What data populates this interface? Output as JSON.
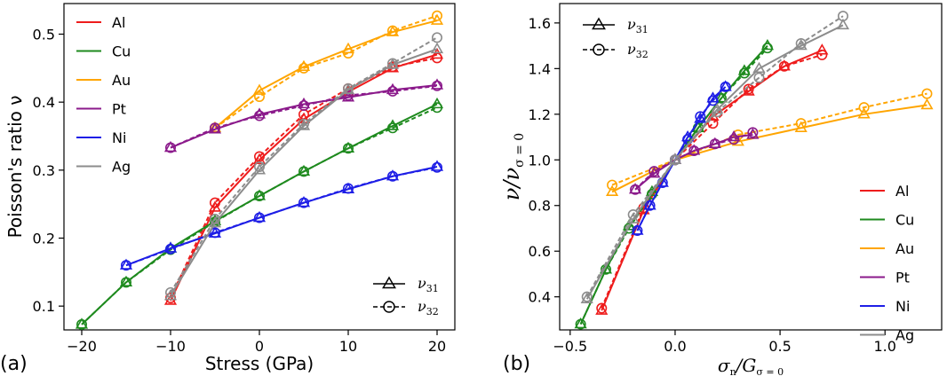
{
  "colors": {
    "Al": "#ee1c1c",
    "Cu": "#1e8a1e",
    "Au": "#ffa500",
    "Pt": "#8b1a8b",
    "Ni": "#1e1ee6",
    "Ag": "#8c8c8c"
  },
  "chart_data": [
    {
      "type": "line",
      "panel_label": "(a)",
      "xlabel": "Stress (GPa)",
      "ylabel": "Poisson's ratio ν",
      "xlim": [
        -22,
        22
      ],
      "ylim": [
        0.065,
        0.545
      ],
      "xticks": [
        -20,
        -10,
        0,
        10,
        20
      ],
      "xtick_labels": [
        "−20",
        "−10",
        "0",
        "10",
        "20"
      ],
      "yticks": [
        0.1,
        0.2,
        0.3,
        0.4,
        0.5
      ],
      "ytick_labels": [
        "0.1",
        "0.2",
        "0.3",
        "0.4",
        "0.5"
      ],
      "material_legend": [
        "Al",
        "Cu",
        "Au",
        "Pt",
        "Ni",
        "Ag"
      ],
      "marker_legend": {
        "nu31": {
          "base": "ν",
          "sub": "31"
        },
        "nu32": {
          "base": "ν",
          "sub": "32"
        }
      },
      "series": [
        {
          "name": "Al",
          "x": [
            -10,
            -5,
            0,
            5,
            10,
            15,
            20
          ],
          "nu31": [
            0.108,
            0.245,
            0.315,
            0.375,
            0.415,
            0.45,
            0.47
          ],
          "nu32": [
            0.112,
            0.252,
            0.32,
            0.382,
            0.42,
            0.452,
            0.465
          ]
        },
        {
          "name": "Cu",
          "x": [
            -20,
            -15,
            -10,
            -5,
            0,
            5,
            10,
            15,
            20
          ],
          "nu31": [
            0.073,
            0.135,
            0.185,
            0.225,
            0.262,
            0.298,
            0.332,
            0.365,
            0.397
          ],
          "nu32": [
            0.073,
            0.135,
            0.183,
            0.224,
            0.262,
            0.298,
            0.332,
            0.362,
            0.392
          ]
        },
        {
          "name": "Au",
          "x": [
            -5,
            0,
            5,
            10,
            15,
            20
          ],
          "nu31": [
            0.362,
            0.417,
            0.452,
            0.478,
            0.503,
            0.52
          ],
          "nu32": [
            0.362,
            0.408,
            0.45,
            0.472,
            0.505,
            0.527
          ]
        },
        {
          "name": "Pt",
          "x": [
            -10,
            -5,
            0,
            5,
            10,
            15,
            20
          ],
          "nu31": [
            0.333,
            0.36,
            0.382,
            0.397,
            0.407,
            0.418,
            0.425
          ],
          "nu32": [
            0.333,
            0.362,
            0.38,
            0.395,
            0.41,
            0.416,
            0.424
          ]
        },
        {
          "name": "Ni",
          "x": [
            -15,
            -10,
            -5,
            0,
            5,
            10,
            15,
            20
          ],
          "nu31": [
            0.16,
            0.185,
            0.207,
            0.23,
            0.252,
            0.272,
            0.291,
            0.305
          ],
          "nu32": [
            0.16,
            0.184,
            0.208,
            0.23,
            0.252,
            0.273,
            0.291,
            0.304
          ]
        },
        {
          "name": "Ag",
          "x": [
            -10,
            -5,
            0,
            5,
            10,
            15,
            20
          ],
          "nu31": [
            0.115,
            0.222,
            0.3,
            0.365,
            0.418,
            0.455,
            0.478
          ],
          "nu32": [
            0.12,
            0.228,
            0.305,
            0.368,
            0.42,
            0.457,
            0.495
          ]
        }
      ]
    },
    {
      "type": "line",
      "panel_label": "(b)",
      "xlabel": {
        "base": "σ",
        "sub1": "n",
        "mid": "/G",
        "sub2": "σ = 0"
      },
      "ylabel": {
        "base": "ν/ν",
        "sub": "σ = 0"
      },
      "xlim": [
        -0.55,
        1.27
      ],
      "ylim": [
        0.255,
        1.685
      ],
      "xticks": [
        -0.5,
        0.0,
        0.5,
        1.0
      ],
      "xtick_labels": [
        "−0.5",
        "0.0",
        "0.5",
        "1.0"
      ],
      "yticks": [
        0.4,
        0.6,
        0.8,
        1.0,
        1.2,
        1.4,
        1.6
      ],
      "ytick_labels": [
        "0.4",
        "0.6",
        "0.8",
        "1.0",
        "1.2",
        "1.4",
        "1.6"
      ],
      "material_legend": [
        "Al",
        "Cu",
        "Au",
        "Pt",
        "Ni",
        "Ag"
      ],
      "marker_legend": {
        "nu31": {
          "base": "ν",
          "sub": "31"
        },
        "nu32": {
          "base": "ν",
          "sub": "32"
        }
      },
      "series": [
        {
          "name": "Al",
          "nu31": {
            "x": [
              -0.35,
              -0.15,
              0.0,
              0.18,
              0.35,
              0.52,
              0.7
            ],
            "y": [
              0.34,
              0.78,
              1.0,
              1.19,
              1.3,
              1.41,
              1.48
            ]
          },
          "nu32": {
            "x": [
              -0.35,
              -0.15,
              0.0,
              0.18,
              0.35,
              0.52,
              0.7
            ],
            "y": [
              0.35,
              0.79,
              1.0,
              1.16,
              1.31,
              1.41,
              1.46
            ]
          }
        },
        {
          "name": "Cu",
          "nu31": {
            "x": [
              -0.45,
              -0.33,
              -0.22,
              -0.11,
              0.0,
              0.11,
              0.22,
              0.33,
              0.44
            ],
            "y": [
              0.28,
              0.52,
              0.71,
              0.86,
              1.0,
              1.14,
              1.27,
              1.39,
              1.5
            ]
          },
          "nu32": {
            "x": [
              -0.45,
              -0.33,
              -0.22,
              -0.11,
              0.0,
              0.11,
              0.22,
              0.33,
              0.44
            ],
            "y": [
              0.28,
              0.52,
              0.7,
              0.85,
              1.0,
              1.14,
              1.27,
              1.38,
              1.49
            ]
          }
        },
        {
          "name": "Au",
          "nu31": {
            "x": [
              -0.3,
              0.0,
              0.3,
              0.6,
              0.9,
              1.2
            ],
            "y": [
              0.86,
              1.0,
              1.08,
              1.14,
              1.2,
              1.24
            ]
          },
          "nu32": {
            "x": [
              -0.3,
              0.0,
              0.3,
              0.6,
              0.9,
              1.2
            ],
            "y": [
              0.89,
              1.0,
              1.11,
              1.16,
              1.23,
              1.29
            ]
          }
        },
        {
          "name": "Pt",
          "nu31": {
            "x": [
              -0.19,
              -0.1,
              0.0,
              0.09,
              0.19,
              0.28,
              0.37
            ],
            "y": [
              0.87,
              0.94,
              1.0,
              1.04,
              1.07,
              1.1,
              1.11
            ]
          },
          "nu32": {
            "x": [
              -0.19,
              -0.1,
              0.0,
              0.09,
              0.19,
              0.28,
              0.37
            ],
            "y": [
              0.87,
              0.95,
              1.0,
              1.04,
              1.07,
              1.09,
              1.12
            ]
          }
        },
        {
          "name": "Ni",
          "nu31": {
            "x": [
              -0.18,
              -0.12,
              -0.06,
              0.0,
              0.06,
              0.12,
              0.18,
              0.24
            ],
            "y": [
              0.69,
              0.8,
              0.9,
              1.0,
              1.1,
              1.18,
              1.27,
              1.32
            ]
          },
          "nu32": {
            "x": [
              -0.18,
              -0.12,
              -0.06,
              0.0,
              0.06,
              0.12,
              0.18,
              0.24
            ],
            "y": [
              0.69,
              0.8,
              0.9,
              1.0,
              1.09,
              1.19,
              1.26,
              1.32
            ]
          }
        },
        {
          "name": "Ag",
          "nu31": {
            "x": [
              -0.42,
              -0.2,
              0.0,
              0.2,
              0.4,
              0.6,
              0.8
            ],
            "y": [
              0.39,
              0.74,
              1.0,
              1.22,
              1.4,
              1.5,
              1.59
            ]
          },
          "nu32": {
            "x": [
              -0.42,
              -0.2,
              0.0,
              0.2,
              0.4,
              0.6,
              0.8
            ],
            "y": [
              0.4,
              0.76,
              1.0,
              1.21,
              1.36,
              1.51,
              1.63
            ]
          }
        }
      ]
    }
  ]
}
